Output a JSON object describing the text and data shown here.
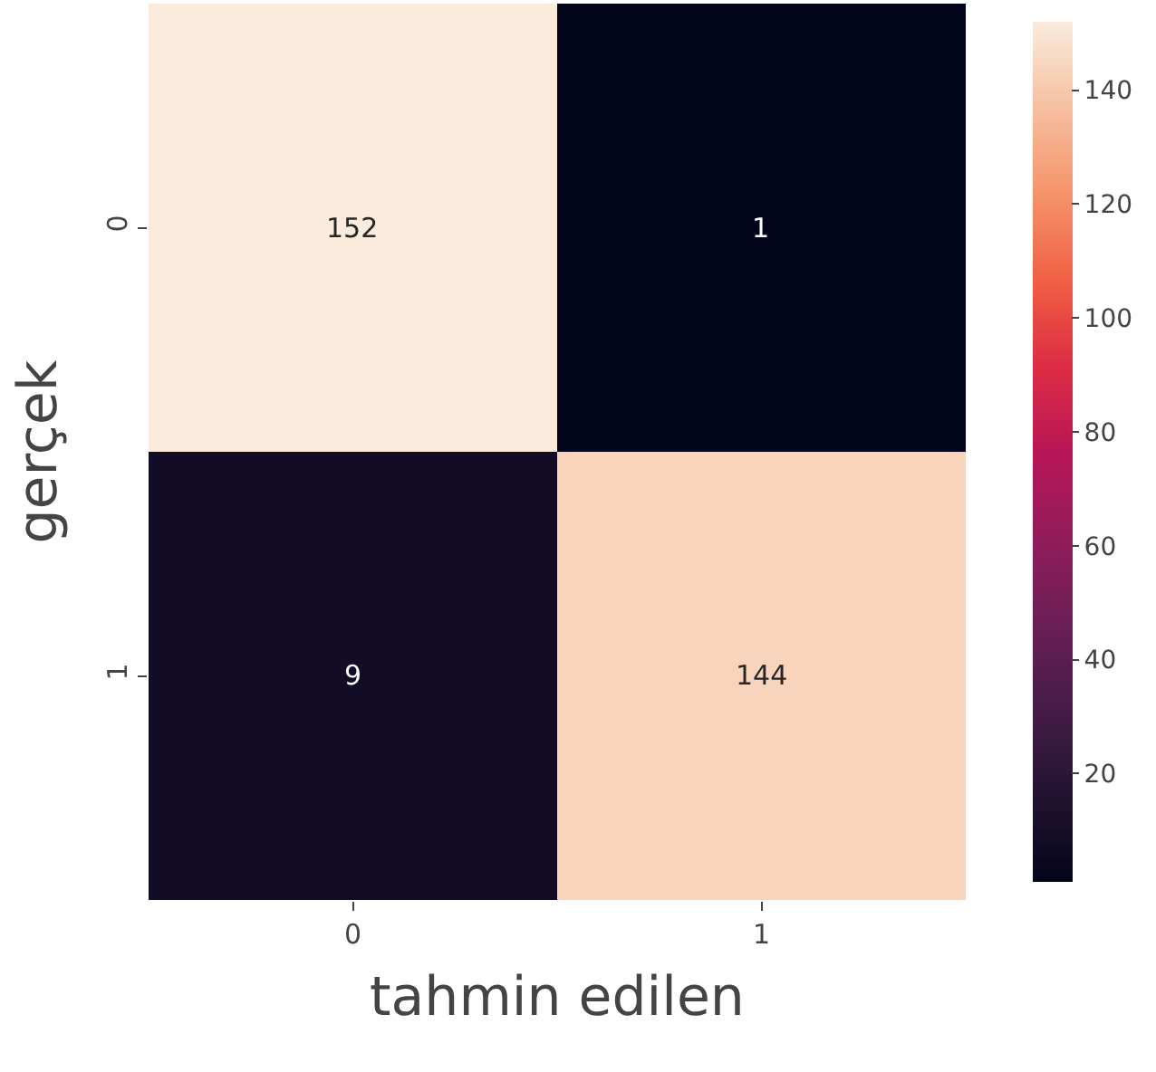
{
  "chart_data": {
    "type": "heatmap",
    "xlabel": "tahmin edilen",
    "ylabel": "gerçek",
    "categories": [
      "0",
      "1"
    ],
    "y_categories": [
      "0",
      "1"
    ],
    "cells": [
      [
        152,
        1
      ],
      [
        9,
        144
      ]
    ],
    "data_labels": true,
    "clim": [
      1,
      152
    ],
    "cticks": [
      20,
      40,
      60,
      80,
      100,
      120,
      140
    ]
  }
}
